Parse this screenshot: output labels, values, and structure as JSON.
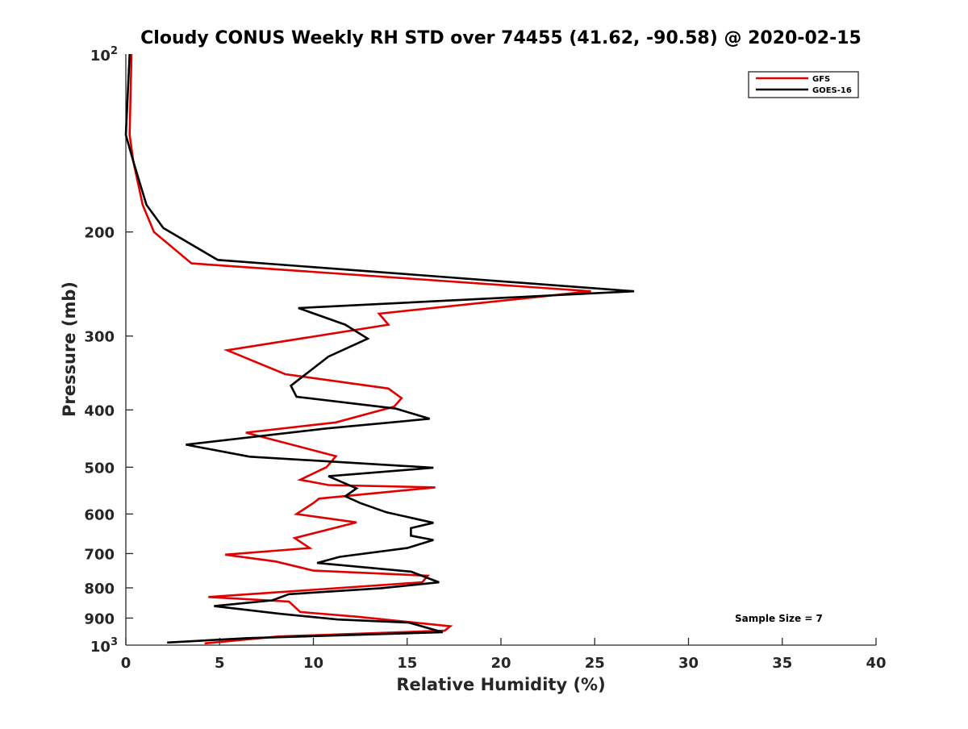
{
  "chart_data": {
    "type": "line",
    "title": "Cloudy CONUS Weekly RH STD over 74455 (41.62, -90.58) @ 2020-02-15",
    "xlabel": "Relative Humidity (%)",
    "ylabel": "Pressure (mb)",
    "xlim": [
      0,
      40
    ],
    "ylim": [
      100,
      1000
    ],
    "y_scale": "log",
    "y_reversed": true,
    "x_ticks": [
      "0",
      "5",
      "10",
      "15",
      "20",
      "25",
      "30",
      "35",
      "40"
    ],
    "y_ticks": [
      "200",
      "300",
      "400",
      "500",
      "600",
      "700",
      "800",
      "900"
    ],
    "y_tick_exp_labels": {
      "base": "10",
      "top_exp": "2",
      "bottom_exp": "3"
    },
    "grid": false,
    "legend_position": "top-right",
    "annotation": "Sample Size = 7",
    "series": [
      {
        "name": "GFS",
        "color": "#e00000",
        "points": [
          [
            0.3,
            100
          ],
          [
            0.2,
            137
          ],
          [
            0.4,
            152
          ],
          [
            0.9,
            180
          ],
          [
            1.5,
            200
          ],
          [
            3.5,
            226
          ],
          [
            24.8,
            252
          ],
          [
            13.5,
            275
          ],
          [
            14.0,
            287
          ],
          [
            5.4,
            317
          ],
          [
            8.5,
            348
          ],
          [
            14.0,
            368
          ],
          [
            14.7,
            382
          ],
          [
            14.3,
            395
          ],
          [
            11.2,
            420
          ],
          [
            6.4,
            437
          ],
          [
            11.2,
            479
          ],
          [
            10.7,
            500
          ],
          [
            9.3,
            525
          ],
          [
            10.8,
            536
          ],
          [
            16.5,
            541
          ],
          [
            10.3,
            565
          ],
          [
            10.0,
            575
          ],
          [
            9.1,
            600
          ],
          [
            12.3,
            620
          ],
          [
            9.0,
            659
          ],
          [
            9.8,
            685
          ],
          [
            5.3,
            703
          ],
          [
            8.0,
            722
          ],
          [
            10.0,
            748
          ],
          [
            16.1,
            763
          ],
          [
            15.8,
            783
          ],
          [
            4.4,
            829
          ],
          [
            8.7,
            844
          ],
          [
            9.3,
            879
          ],
          [
            12.3,
            895
          ],
          [
            17.3,
            929
          ],
          [
            17.0,
            945
          ],
          [
            8.1,
            967
          ],
          [
            4.2,
            993
          ]
        ]
      },
      {
        "name": "GOES-16",
        "color": "#000000",
        "points": [
          [
            0.2,
            100
          ],
          [
            0.0,
            137
          ],
          [
            0.4,
            152
          ],
          [
            1.1,
            180
          ],
          [
            2.0,
            197
          ],
          [
            4.9,
            223
          ],
          [
            27.1,
            252
          ],
          [
            9.2,
            269
          ],
          [
            11.7,
            287
          ],
          [
            12.9,
            303
          ],
          [
            10.8,
            325
          ],
          [
            8.8,
            364
          ],
          [
            9.1,
            380
          ],
          [
            14.4,
            398
          ],
          [
            16.2,
            414
          ],
          [
            10.7,
            430
          ],
          [
            3.2,
            458
          ],
          [
            6.6,
            480
          ],
          [
            16.4,
            501
          ],
          [
            10.8,
            518
          ],
          [
            12.3,
            543
          ],
          [
            11.7,
            560
          ],
          [
            12.5,
            575
          ],
          [
            13.9,
            596
          ],
          [
            16.4,
            621
          ],
          [
            15.2,
            634
          ],
          [
            15.2,
            653
          ],
          [
            16.4,
            664
          ],
          [
            15.0,
            685
          ],
          [
            11.4,
            709
          ],
          [
            10.2,
            726
          ],
          [
            15.2,
            751
          ],
          [
            16.7,
            783
          ],
          [
            13.6,
            801
          ],
          [
            8.7,
            820
          ],
          [
            7.8,
            840
          ],
          [
            4.7,
            859
          ],
          [
            8.2,
            885
          ],
          [
            11.3,
            905
          ],
          [
            15.1,
            916
          ],
          [
            16.9,
            951
          ],
          [
            6.5,
            973
          ],
          [
            2.2,
            990
          ]
        ]
      }
    ]
  }
}
